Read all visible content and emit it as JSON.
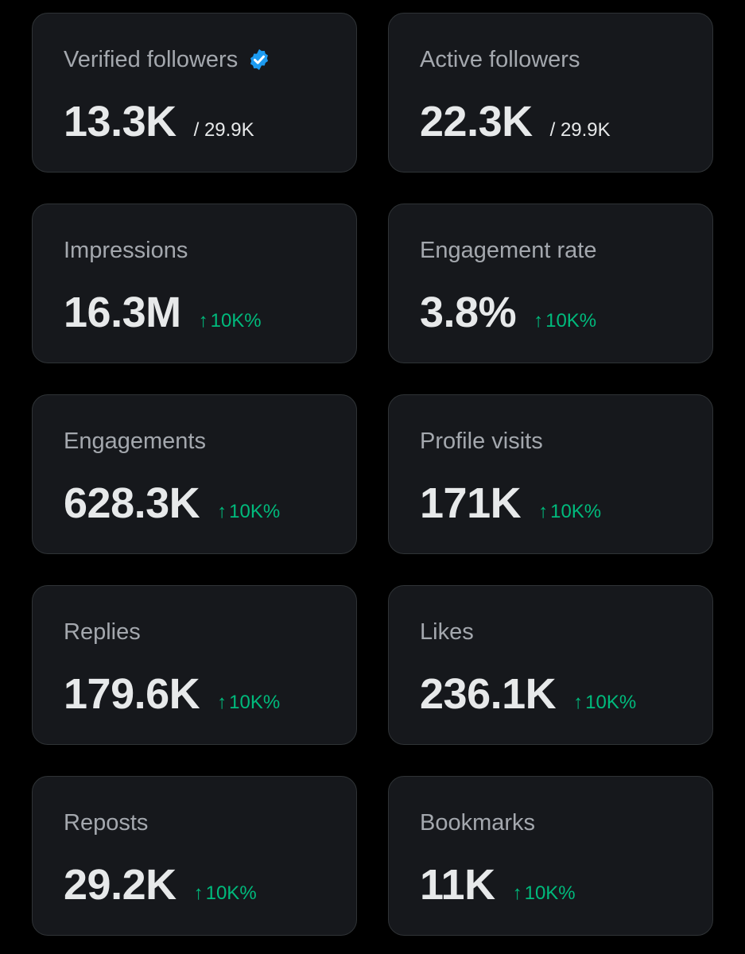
{
  "colors": {
    "background": "#000000",
    "card_background": "#16181c",
    "card_border": "#2f3336",
    "label": "#a4a8ae",
    "value": "#e7e9ea",
    "positive_change": "#00ba7c",
    "verified_badge": "#1d9bf0"
  },
  "cards": [
    {
      "label": "Verified followers",
      "value": "13.3K",
      "total": "/ 29.9K",
      "badge": "verified-badge-icon"
    },
    {
      "label": "Active followers",
      "value": "22.3K",
      "total": "/ 29.9K"
    },
    {
      "label": "Impressions",
      "value": "16.3M",
      "change": "10K%",
      "change_icon": "arrow-up-icon"
    },
    {
      "label": "Engagement rate",
      "value": "3.8%",
      "change": "10K%",
      "change_icon": "arrow-up-icon"
    },
    {
      "label": "Engagements",
      "value": "628.3K",
      "change": "10K%",
      "change_icon": "arrow-up-icon"
    },
    {
      "label": "Profile visits",
      "value": "171K",
      "change": "10K%",
      "change_icon": "arrow-up-icon"
    },
    {
      "label": "Replies",
      "value": "179.6K",
      "change": "10K%",
      "change_icon": "arrow-up-icon"
    },
    {
      "label": "Likes",
      "value": "236.1K",
      "change": "10K%",
      "change_icon": "arrow-up-icon"
    },
    {
      "label": "Reposts",
      "value": "29.2K",
      "change": "10K%",
      "change_icon": "arrow-up-icon"
    },
    {
      "label": "Bookmarks",
      "value": "11K",
      "change": "10K%",
      "change_icon": "arrow-up-icon"
    }
  ]
}
